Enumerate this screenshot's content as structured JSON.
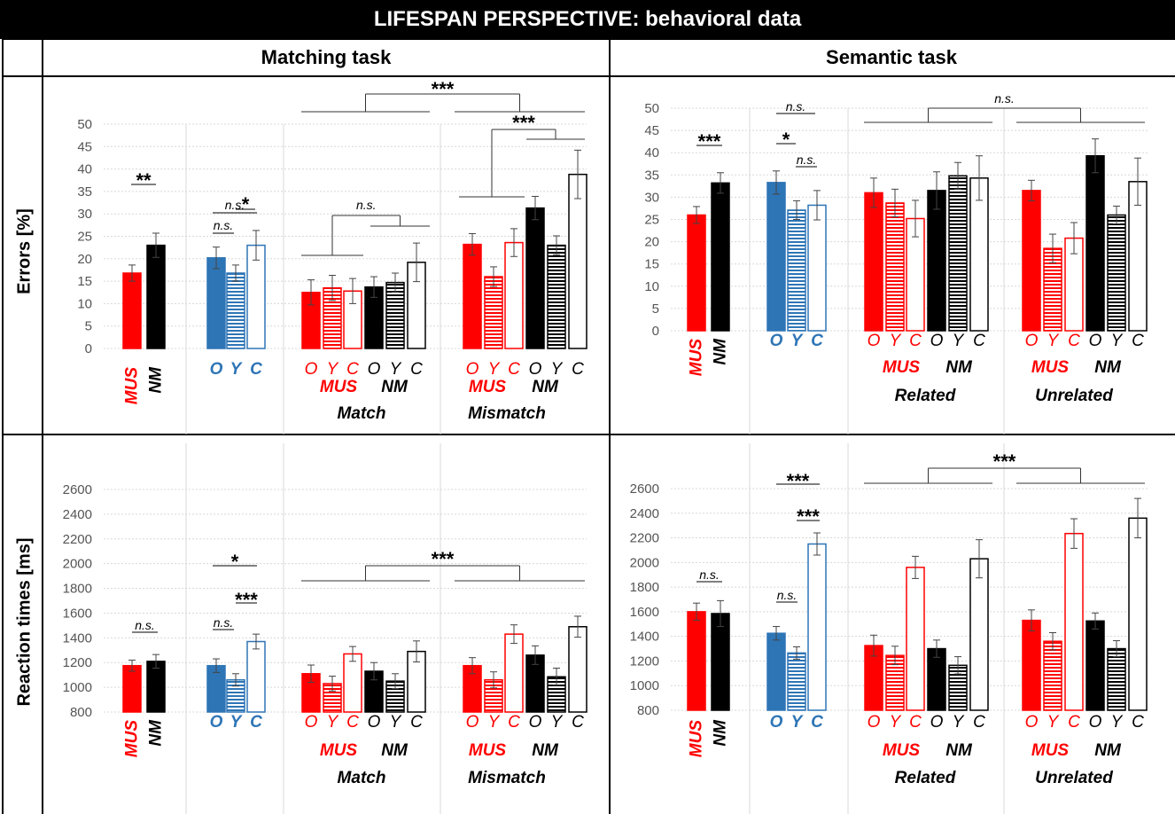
{
  "header": {
    "title": "LIFESPAN PERSPECTIVE: behavioral data"
  },
  "columns": [
    "Matching task",
    "Semantic task"
  ],
  "rows": [
    "Errors [%]",
    "Reaction times [ms]"
  ],
  "colors": {
    "mus": "#ff0000",
    "nm": "#000000",
    "age": "#2e75b6"
  },
  "chart_data": [
    {
      "type": "bar",
      "title": "Matching task — Errors",
      "ylabel": "Errors [%]",
      "ylim": [
        0,
        50
      ],
      "ticks": [
        "0",
        "5",
        "10",
        "15",
        "20",
        "25",
        "30",
        "35",
        "40",
        "45",
        "50"
      ],
      "group_labels": [
        "MUS",
        "NM",
        "O",
        "Y",
        "C",
        "MUS",
        "NM",
        "MUS",
        "NM",
        "Match",
        "Mismatch"
      ],
      "series": [
        {
          "name": "MUS",
          "values": [
            16.8
          ],
          "errors": [
            1.8
          ]
        },
        {
          "name": "NM",
          "values": [
            23
          ],
          "errors": [
            2.7
          ]
        },
        {
          "name": "O",
          "values": [
            20.2
          ],
          "errors": [
            2.4
          ]
        },
        {
          "name": "Y",
          "values": [
            16.8
          ],
          "errors": [
            1.8
          ]
        },
        {
          "name": "C",
          "values": [
            23
          ],
          "errors": [
            3.3
          ]
        },
        {
          "name": "Match MUS O",
          "values": [
            12.5
          ],
          "errors": [
            2.8
          ]
        },
        {
          "name": "Match MUS Y",
          "values": [
            13.5
          ],
          "errors": [
            2.8
          ]
        },
        {
          "name": "Match MUS C",
          "values": [
            12.8
          ],
          "errors": [
            2.8
          ]
        },
        {
          "name": "Match NM O",
          "values": [
            13.7
          ],
          "errors": [
            2.3
          ]
        },
        {
          "name": "Match NM Y",
          "values": [
            14.7
          ],
          "errors": [
            2.1
          ]
        },
        {
          "name": "Match NM C",
          "values": [
            19.2
          ],
          "errors": [
            4.3
          ]
        },
        {
          "name": "Mismatch MUS O",
          "values": [
            23.2
          ],
          "errors": [
            2.4
          ]
        },
        {
          "name": "Mismatch MUS Y",
          "values": [
            16
          ],
          "errors": [
            2.2
          ]
        },
        {
          "name": "Mismatch MUS C",
          "values": [
            23.6
          ],
          "errors": [
            3.1
          ]
        },
        {
          "name": "Mismatch NM O",
          "values": [
            31.3
          ],
          "errors": [
            2.6
          ]
        },
        {
          "name": "Mismatch NM Y",
          "values": [
            23
          ],
          "errors": [
            2.1
          ]
        },
        {
          "name": "Mismatch NM C",
          "values": [
            38.8
          ],
          "errors": [
            5.4
          ]
        }
      ],
      "annotations": [
        "**",
        "n.s.",
        "*",
        "n.s.",
        "n.s.",
        "***",
        "***"
      ]
    },
    {
      "type": "bar",
      "title": "Semantic task — Errors",
      "ylabel": "Errors [%]",
      "ylim": [
        0,
        50
      ],
      "ticks": [
        "0",
        "5",
        "10",
        "15",
        "20",
        "25",
        "30",
        "35",
        "40",
        "45",
        "50"
      ],
      "group_labels": [
        "MUS",
        "NM",
        "O",
        "Y",
        "C",
        "MUS",
        "NM",
        "MUS",
        "NM",
        "Related",
        "Unrelated"
      ],
      "series": [
        {
          "name": "MUS",
          "values": [
            26
          ],
          "errors": [
            1.9
          ]
        },
        {
          "name": "NM",
          "values": [
            33.2
          ],
          "errors": [
            2.3
          ]
        },
        {
          "name": "O",
          "values": [
            33.3
          ],
          "errors": [
            2.6
          ]
        },
        {
          "name": "Y",
          "values": [
            27.1
          ],
          "errors": [
            2.1
          ]
        },
        {
          "name": "C",
          "values": [
            28.2
          ],
          "errors": [
            3.3
          ]
        },
        {
          "name": "Related MUS O",
          "values": [
            31
          ],
          "errors": [
            3.3
          ]
        },
        {
          "name": "Related MUS Y",
          "values": [
            28.7
          ],
          "errors": [
            3.1
          ]
        },
        {
          "name": "Related MUS C",
          "values": [
            25.2
          ],
          "errors": [
            4.1
          ]
        },
        {
          "name": "Related NM O",
          "values": [
            31.5
          ],
          "errors": [
            4.2
          ]
        },
        {
          "name": "Related NM Y",
          "values": [
            34.8
          ],
          "errors": [
            3
          ]
        },
        {
          "name": "Related NM C",
          "values": [
            34.3
          ],
          "errors": [
            5
          ]
        },
        {
          "name": "Unrelated MUS O",
          "values": [
            31.5
          ],
          "errors": [
            2.3
          ]
        },
        {
          "name": "Unrelated MUS Y",
          "values": [
            18.5
          ],
          "errors": [
            3.2
          ]
        },
        {
          "name": "Unrelated MUS C",
          "values": [
            20.8
          ],
          "errors": [
            3.5
          ]
        },
        {
          "name": "Unrelated NM O",
          "values": [
            39.3
          ],
          "errors": [
            3.8
          ]
        },
        {
          "name": "Unrelated NM Y",
          "values": [
            26
          ],
          "errors": [
            2
          ]
        },
        {
          "name": "Unrelated NM C",
          "values": [
            33.5
          ],
          "errors": [
            5.3
          ]
        }
      ],
      "annotations": [
        "***",
        "n.s.",
        "*",
        "n.s.",
        "n.s."
      ]
    },
    {
      "type": "bar",
      "title": "Matching task — Reaction times",
      "ylabel": "Reaction times [ms]",
      "ylim": [
        800,
        2600
      ],
      "ticks": [
        "800",
        "1000",
        "1200",
        "1400",
        "1600",
        "1800",
        "2000",
        "2200",
        "2400",
        "2600"
      ],
      "group_labels": [
        "MUS",
        "NM",
        "O",
        "Y",
        "C",
        "MUS",
        "NM",
        "MUS",
        "NM",
        "Match",
        "Mismatch"
      ],
      "series": [
        {
          "name": "MUS",
          "values": [
            1175
          ],
          "errors": [
            45
          ]
        },
        {
          "name": "NM",
          "values": [
            1210
          ],
          "errors": [
            55
          ]
        },
        {
          "name": "O",
          "values": [
            1175
          ],
          "errors": [
            55
          ]
        },
        {
          "name": "Y",
          "values": [
            1060
          ],
          "errors": [
            50
          ]
        },
        {
          "name": "C",
          "values": [
            1370
          ],
          "errors": [
            60
          ]
        },
        {
          "name": "Match MUS O",
          "values": [
            1110
          ],
          "errors": [
            70
          ]
        },
        {
          "name": "Match MUS Y",
          "values": [
            1030
          ],
          "errors": [
            60
          ]
        },
        {
          "name": "Match MUS C",
          "values": [
            1270
          ],
          "errors": [
            60
          ]
        },
        {
          "name": "Match NM O",
          "values": [
            1130
          ],
          "errors": [
            70
          ]
        },
        {
          "name": "Match NM Y",
          "values": [
            1050
          ],
          "errors": [
            60
          ]
        },
        {
          "name": "Match NM C",
          "values": [
            1290
          ],
          "errors": [
            85
          ]
        },
        {
          "name": "Mismatch MUS O",
          "values": [
            1175
          ],
          "errors": [
            65
          ]
        },
        {
          "name": "Mismatch MUS Y",
          "values": [
            1060
          ],
          "errors": [
            65
          ]
        },
        {
          "name": "Mismatch MUS C",
          "values": [
            1430
          ],
          "errors": [
            75
          ]
        },
        {
          "name": "Mismatch NM O",
          "values": [
            1260
          ],
          "errors": [
            75
          ]
        },
        {
          "name": "Mismatch NM Y",
          "values": [
            1085
          ],
          "errors": [
            70
          ]
        },
        {
          "name": "Mismatch NM C",
          "values": [
            1490
          ],
          "errors": [
            85
          ]
        }
      ],
      "annotations": [
        "n.s.",
        "*",
        "n.s.",
        "***",
        "***"
      ]
    },
    {
      "type": "bar",
      "title": "Semantic task — Reaction times",
      "ylabel": "Reaction times [ms]",
      "ylim": [
        800,
        2600
      ],
      "ticks": [
        "800",
        "1000",
        "1200",
        "1400",
        "1600",
        "1800",
        "2000",
        "2200",
        "2400",
        "2600"
      ],
      "group_labels": [
        "MUS",
        "NM",
        "O",
        "Y",
        "C",
        "MUS",
        "NM",
        "MUS",
        "NM",
        "Related",
        "Unrelated"
      ],
      "series": [
        {
          "name": "MUS",
          "values": [
            1600
          ],
          "errors": [
            70
          ]
        },
        {
          "name": "NM",
          "values": [
            1585
          ],
          "errors": [
            105
          ]
        },
        {
          "name": "O",
          "values": [
            1425
          ],
          "errors": [
            55
          ]
        },
        {
          "name": "Y",
          "values": [
            1265
          ],
          "errors": [
            50
          ]
        },
        {
          "name": "C",
          "values": [
            2150
          ],
          "errors": [
            90
          ]
        },
        {
          "name": "Related MUS O",
          "values": [
            1325
          ],
          "errors": [
            85
          ]
        },
        {
          "name": "Related MUS Y",
          "values": [
            1245
          ],
          "errors": [
            75
          ]
        },
        {
          "name": "Related MUS C",
          "values": [
            1960
          ],
          "errors": [
            90
          ]
        },
        {
          "name": "Related NM O",
          "values": [
            1300
          ],
          "errors": [
            70
          ]
        },
        {
          "name": "Related NM Y",
          "values": [
            1165
          ],
          "errors": [
            70
          ]
        },
        {
          "name": "Related NM C",
          "values": [
            2030
          ],
          "errors": [
            155
          ]
        },
        {
          "name": "Unrelated MUS O",
          "values": [
            1530
          ],
          "errors": [
            85
          ]
        },
        {
          "name": "Unrelated MUS Y",
          "values": [
            1360
          ],
          "errors": [
            70
          ]
        },
        {
          "name": "Unrelated MUS C",
          "values": [
            2235
          ],
          "errors": [
            120
          ]
        },
        {
          "name": "Unrelated NM O",
          "values": [
            1525
          ],
          "errors": [
            65
          ]
        },
        {
          "name": "Unrelated NM Y",
          "values": [
            1300
          ],
          "errors": [
            65
          ]
        },
        {
          "name": "Unrelated NM C",
          "values": [
            2360
          ],
          "errors": [
            160
          ]
        }
      ],
      "annotations": [
        "n.s.",
        "***",
        "n.s.",
        "***",
        "***"
      ]
    }
  ]
}
